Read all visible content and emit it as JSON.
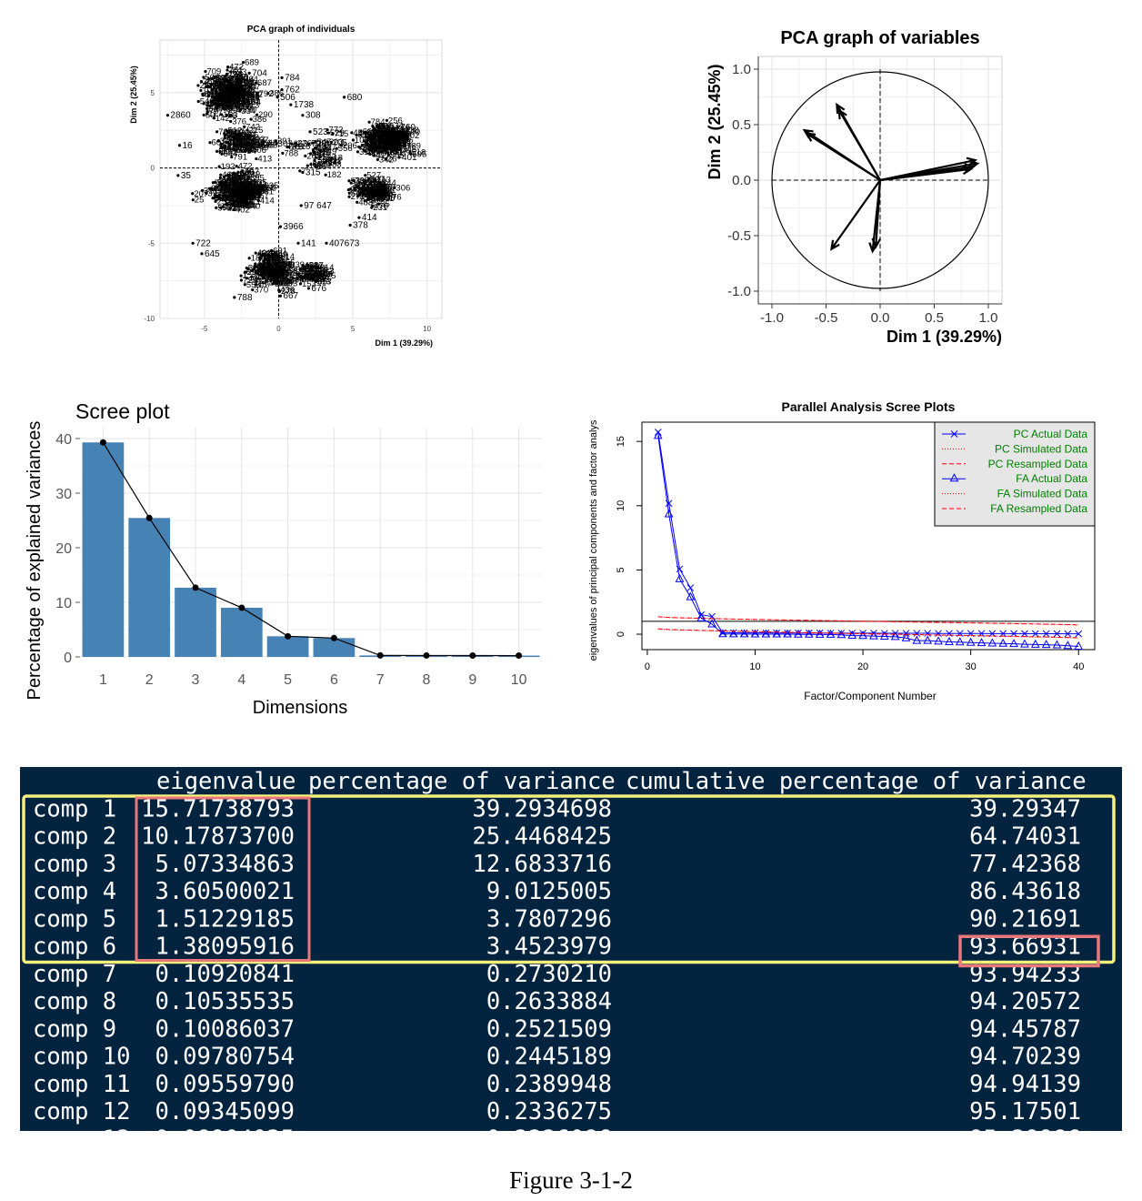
{
  "caption": "Figure 3-1-2",
  "chart_data": [
    {
      "id": "pca_individuals",
      "type": "scatter",
      "title": "PCA graph of individuals",
      "xlabel": "Dim 1 (39.29%)",
      "ylabel": "Dim 2 (25.45%)",
      "xlim": [
        -8,
        11
      ],
      "ylim": [
        -10,
        8.5
      ],
      "xticks": [
        -5,
        0,
        5,
        10
      ],
      "yticks": [
        -10,
        -5,
        0,
        5
      ],
      "grid": true,
      "clusters": [
        {
          "cx": -3.6,
          "cy": 5.0,
          "sx": 1.4,
          "sy": 1.3,
          "n": 170
        },
        {
          "cx": -2.8,
          "cy": 1.8,
          "sx": 1.3,
          "sy": 0.9,
          "n": 70
        },
        {
          "cx": -3.0,
          "cy": -1.6,
          "sx": 1.4,
          "sy": 1.1,
          "n": 170
        },
        {
          "cx": -0.9,
          "cy": -6.8,
          "sx": 1.3,
          "sy": 1.0,
          "n": 110
        },
        {
          "cx": 2.0,
          "cy": -7.0,
          "sx": 0.9,
          "sy": 0.6,
          "n": 40
        },
        {
          "cx": 6.9,
          "cy": 1.9,
          "sx": 1.4,
          "sy": 0.9,
          "n": 160
        },
        {
          "cx": 6.0,
          "cy": -1.5,
          "sx": 1.2,
          "sy": 0.8,
          "n": 80
        },
        {
          "cx": 2.5,
          "cy": 1.0,
          "sx": 1.8,
          "sy": 1.2,
          "n": 40
        }
      ],
      "point_labels": [
        {
          "t": "784",
          "x": 0.4,
          "y": 6.0
        },
        {
          "t": "704",
          "x": -1.8,
          "y": 6.3
        },
        {
          "t": "762",
          "x": 0.4,
          "y": 5.2
        },
        {
          "t": "506",
          "x": 0.1,
          "y": 4.7
        },
        {
          "t": "308",
          "x": 1.8,
          "y": 3.5
        },
        {
          "t": "1738",
          "x": 1.0,
          "y": 4.2
        },
        {
          "t": "523",
          "x": 2.3,
          "y": 2.4
        },
        {
          "t": "728",
          "x": 2.2,
          "y": 1.6
        },
        {
          "t": "509",
          "x": 2.6,
          "y": 0.5
        },
        {
          "t": "680",
          "x": 4.6,
          "y": 4.7
        },
        {
          "t": "760",
          "x": 8.2,
          "y": 2.7
        },
        {
          "t": "401",
          "x": 8.3,
          "y": 0.7
        },
        {
          "t": "378",
          "x": 5.0,
          "y": -3.8
        },
        {
          "t": "414",
          "x": 5.6,
          "y": -3.3
        },
        {
          "t": "407673",
          "x": 3.4,
          "y": -5.0
        },
        {
          "t": "141",
          "x": 1.5,
          "y": -5.0
        },
        {
          "t": "3966",
          "x": 0.3,
          "y": -3.9
        },
        {
          "t": "97 647",
          "x": 1.7,
          "y": -2.5
        },
        {
          "t": "676",
          "x": 2.2,
          "y": -8.0
        },
        {
          "t": "788",
          "x": -2.8,
          "y": -8.6
        },
        {
          "t": "645",
          "x": -5.0,
          "y": -5.7
        },
        {
          "t": "722",
          "x": -5.6,
          "y": -5.0
        },
        {
          "t": "2860",
          "x": -7.3,
          "y": 3.5
        },
        {
          "t": "16",
          "x": -6.5,
          "y": 1.5
        },
        {
          "t": "35",
          "x": -6.6,
          "y": -0.5
        },
        {
          "t": "667",
          "x": 0.3,
          "y": -8.5
        },
        {
          "t": "315",
          "x": 1.8,
          "y": -0.3
        }
      ]
    },
    {
      "id": "pca_variables",
      "type": "scatter",
      "title": "PCA graph of variables",
      "xlabel": "Dim 1 (39.29%)",
      "ylabel": "Dim 2 (25.45%)",
      "xlim": [
        -1.0,
        1.0
      ],
      "ylim": [
        -1.0,
        1.0
      ],
      "xticks": [
        -1.0,
        -0.5,
        0.0,
        0.5,
        1.0
      ],
      "yticks": [
        -1.0,
        -0.5,
        0.0,
        0.5,
        1.0
      ],
      "grid": true,
      "arrows": [
        {
          "x": 0.88,
          "y": 0.18
        },
        {
          "x": 0.9,
          "y": 0.15
        },
        {
          "x": 0.86,
          "y": 0.12
        },
        {
          "x": 0.84,
          "y": 0.1
        },
        {
          "x": -0.7,
          "y": 0.45
        },
        {
          "x": -0.68,
          "y": 0.42
        },
        {
          "x": -0.4,
          "y": 0.68
        },
        {
          "x": -0.38,
          "y": 0.63
        },
        {
          "x": -0.45,
          "y": -0.62
        },
        {
          "x": -0.07,
          "y": -0.64
        },
        {
          "x": -0.04,
          "y": -0.6
        }
      ]
    },
    {
      "id": "scree_plot",
      "type": "bar",
      "title": "Scree plot",
      "xlabel": "Dimensions",
      "ylabel": "Percentage of explained variances",
      "categories": [
        "1",
        "2",
        "3",
        "4",
        "5",
        "6",
        "7",
        "8",
        "9",
        "10"
      ],
      "values": [
        39.29,
        25.45,
        12.68,
        9.01,
        3.78,
        3.45,
        0.27,
        0.26,
        0.25,
        0.24
      ],
      "ylim": [
        0,
        42
      ],
      "yticks": [
        0,
        10,
        20,
        30,
        40
      ],
      "bar_color": "#4682b4",
      "grid": true
    },
    {
      "id": "parallel_analysis",
      "type": "line",
      "title": "Parallel Analysis Scree Plots",
      "xlabel": "Factor/Component Number",
      "ylabel": "eigenvalues of principal components and factor analys",
      "xlim": [
        -0.5,
        41.5
      ],
      "ylim": [
        -1.2,
        16.5
      ],
      "xticks": [
        0,
        10,
        20,
        30,
        40
      ],
      "yticks": [
        0,
        5,
        10,
        15
      ],
      "hline": 1,
      "legend_position": "top-right",
      "series": [
        {
          "name": "PC  Actual Data",
          "marker": "x",
          "color": "#0000ff",
          "dash": "solid",
          "values": [
            15.72,
            10.18,
            5.07,
            3.61,
            1.51,
            1.38,
            0.11,
            0.11,
            0.1,
            0.1,
            0.1,
            0.09,
            0.09,
            0.09,
            0.09,
            0.09,
            0.08,
            0.08,
            0.08,
            0.08,
            0.08,
            0.07,
            0.07,
            0.07,
            0.07,
            0.07,
            0.06,
            0.06,
            0.06,
            0.06,
            0.06,
            0.05,
            0.05,
            0.05,
            0.05,
            0.04,
            0.04,
            0.04,
            0.03,
            0.03
          ]
        },
        {
          "name": "PC  Simulated Data",
          "marker": "none",
          "color": "#ff0000",
          "dash": "dotted",
          "values": [
            1.35,
            1.3,
            1.27,
            1.25,
            1.23,
            1.21,
            1.19,
            1.17,
            1.16,
            1.14,
            1.13,
            1.11,
            1.1,
            1.08,
            1.07,
            1.06,
            1.04,
            1.03,
            1.02,
            1.0,
            0.99,
            0.98,
            0.96,
            0.95,
            0.94,
            0.92,
            0.91,
            0.9,
            0.89,
            0.87,
            0.86,
            0.84,
            0.83,
            0.82,
            0.8,
            0.79,
            0.77,
            0.76,
            0.74,
            0.72
          ]
        },
        {
          "name": "PC  Resampled Data",
          "marker": "none",
          "color": "#ff0000",
          "dash": "dashed",
          "values": [
            1.36,
            1.31,
            1.28,
            1.26,
            1.24,
            1.22,
            1.2,
            1.18,
            1.17,
            1.15,
            1.14,
            1.12,
            1.11,
            1.09,
            1.08,
            1.07,
            1.05,
            1.04,
            1.03,
            1.01,
            1.0,
            0.99,
            0.97,
            0.96,
            0.95,
            0.93,
            0.92,
            0.91,
            0.9,
            0.88,
            0.87,
            0.85,
            0.84,
            0.83,
            0.81,
            0.8,
            0.78,
            0.77,
            0.75,
            0.73
          ]
        },
        {
          "name": "FA  Actual Data",
          "marker": "triangle",
          "color": "#0000ff",
          "dash": "solid",
          "values": [
            15.45,
            9.35,
            4.3,
            2.9,
            1.25,
            0.78,
            0.02,
            0.01,
            0.01,
            0.0,
            0.0,
            0.0,
            0.0,
            -0.01,
            -0.01,
            -0.02,
            -0.02,
            -0.05,
            -0.1,
            -0.12,
            -0.15,
            -0.17,
            -0.2,
            -0.3,
            -0.5,
            -0.5,
            -0.55,
            -0.6,
            -0.62,
            -0.65,
            -0.68,
            -0.7,
            -0.72,
            -0.75,
            -0.78,
            -0.8,
            -0.82,
            -0.85,
            -0.9,
            -0.95
          ]
        },
        {
          "name": "FA  Simulated Data",
          "marker": "none",
          "color": "#ff0000",
          "dash": "dotted",
          "values": [
            0.4,
            0.35,
            0.32,
            0.3,
            0.28,
            0.26,
            0.24,
            0.22,
            0.2,
            0.18,
            0.17,
            0.15,
            0.13,
            0.12,
            0.1,
            0.08,
            0.07,
            0.05,
            0.04,
            0.02,
            0.01,
            0.0,
            -0.02,
            -0.03,
            -0.05,
            -0.06,
            -0.08,
            -0.09,
            -0.11,
            -0.12,
            -0.14,
            -0.15,
            -0.17,
            -0.18,
            -0.2,
            -0.22,
            -0.23,
            -0.25,
            -0.27,
            -0.3
          ]
        },
        {
          "name": "FA  Resampled Data",
          "marker": "none",
          "color": "#ff0000",
          "dash": "dashed",
          "values": [
            0.42,
            0.37,
            0.34,
            0.32,
            0.3,
            0.28,
            0.26,
            0.24,
            0.22,
            0.2,
            0.19,
            0.17,
            0.15,
            0.14,
            0.12,
            0.1,
            0.09,
            0.07,
            0.06,
            0.04,
            0.03,
            0.02,
            0.0,
            -0.01,
            -0.03,
            -0.04,
            -0.06,
            -0.07,
            -0.09,
            -0.1,
            -0.12,
            -0.13,
            -0.15,
            -0.16,
            -0.18,
            -0.2,
            -0.21,
            -0.23,
            -0.25,
            -0.28
          ]
        }
      ],
      "legend_text_color": "#008000"
    },
    {
      "id": "eigen_table",
      "type": "table",
      "headers": [
        "eigenvalue",
        "percentage of variance",
        "cumulative percentage of variance"
      ],
      "rows": [
        [
          "comp 1",
          "15.71738793",
          "39.2934698",
          "39.29347"
        ],
        [
          "comp 2",
          "10.17873700",
          "25.4468425",
          "64.74031"
        ],
        [
          "comp 3",
          "5.07334863",
          "12.6833716",
          "77.42368"
        ],
        [
          "comp 4",
          "3.60500021",
          "9.0125005",
          "86.43618"
        ],
        [
          "comp 5",
          "1.51229185",
          "3.7807296",
          "90.21691"
        ],
        [
          "comp 6",
          "1.38095916",
          "3.4523979",
          "93.66931"
        ],
        [
          "comp 7",
          "0.10920841",
          "0.2730210",
          "93.94233"
        ],
        [
          "comp 8",
          "0.10535535",
          "0.2633884",
          "94.20572"
        ],
        [
          "comp 9",
          "0.10086037",
          "0.2521509",
          "94.45787"
        ],
        [
          "comp 10",
          "0.09780754",
          "0.2445189",
          "94.70239"
        ],
        [
          "comp 11",
          "0.09559790",
          "0.2389948",
          "94.94139"
        ],
        [
          "comp 12",
          "0.09345099",
          "0.2336275",
          "95.17501"
        ]
      ],
      "highlight_rows": [
        1,
        6
      ],
      "highlight_eigen_rows": [
        1,
        6
      ],
      "highlight_cell": {
        "row": 6,
        "column": "cumulative percentage of variance"
      },
      "colors": {
        "background": "#04233f",
        "text": "#ffffff",
        "yellow_box": "#f5f07a",
        "red_box": "#e8787c"
      }
    }
  ]
}
